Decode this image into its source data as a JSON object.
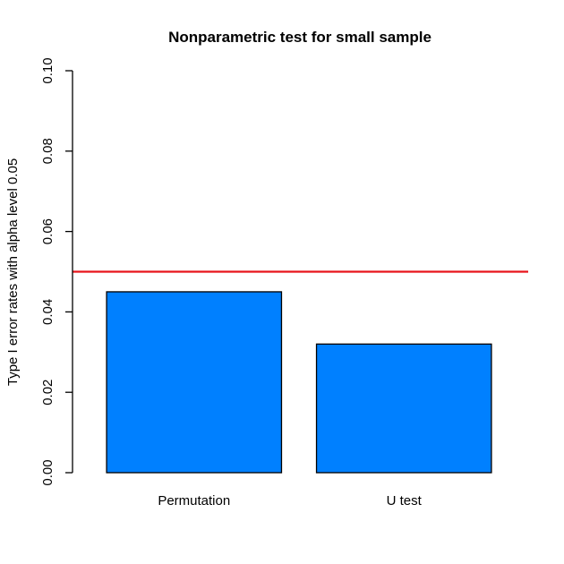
{
  "chart_data": {
    "type": "bar",
    "title": "Nonparametric test for small sample",
    "xlabel": "",
    "ylabel": "Type I error rates with alpha level 0.05",
    "categories": [
      "Permutation",
      "U test"
    ],
    "values": [
      0.045,
      0.032
    ],
    "ylim": [
      0,
      0.1
    ],
    "yticks": [
      0.0,
      0.02,
      0.04,
      0.06,
      0.08,
      0.1
    ],
    "ytick_labels": [
      "0.00",
      "0.02",
      "0.04",
      "0.06",
      "0.08",
      "0.10"
    ],
    "reference_line": {
      "value": 0.05,
      "color": "#e8141b"
    },
    "bar_color": "#0080ff",
    "grid": false,
    "legend": "none"
  }
}
